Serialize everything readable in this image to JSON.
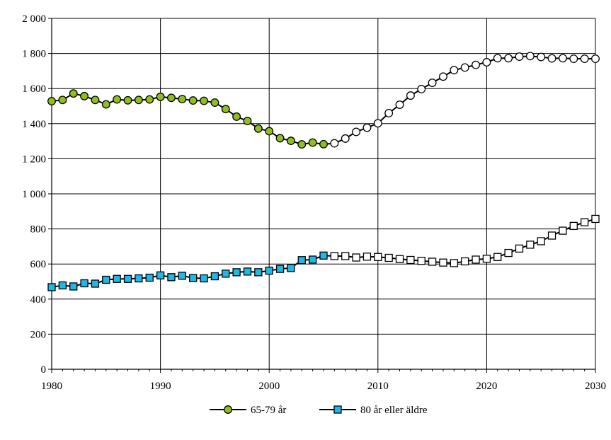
{
  "chart_data": {
    "type": "line",
    "title": "",
    "xlabel": "",
    "ylabel": "",
    "xlim": [
      1980,
      2030
    ],
    "ylim": [
      0,
      2000
    ],
    "grid": true,
    "legend_position": "bottom-center",
    "x_ticks": [
      {
        "value": 1980,
        "label": "1980"
      },
      {
        "value": 1990,
        "label": "1990"
      },
      {
        "value": 2000,
        "label": "2000"
      },
      {
        "value": 2010,
        "label": "2010"
      },
      {
        "value": 2020,
        "label": "2020"
      },
      {
        "value": 2030,
        "label": "2030"
      }
    ],
    "y_ticks": [
      {
        "value": 0,
        "label": "0"
      },
      {
        "value": 200,
        "label": "200"
      },
      {
        "value": 400,
        "label": "400"
      },
      {
        "value": 600,
        "label": "600"
      },
      {
        "value": 800,
        "label": "800"
      },
      {
        "value": 1000,
        "label": "1 000"
      },
      {
        "value": 1200,
        "label": "1 200"
      },
      {
        "value": 1400,
        "label": "1 400"
      },
      {
        "value": 1600,
        "label": "1 600"
      },
      {
        "value": 1800,
        "label": "1 800"
      },
      {
        "value": 2000,
        "label": "2 000"
      }
    ],
    "forecast_start_year": 2006,
    "series": [
      {
        "name": "65-79 år",
        "marker": "circle",
        "color": "#8fbf1e",
        "forecast_color": "#ffffff",
        "x": [
          1980,
          1981,
          1982,
          1983,
          1984,
          1985,
          1986,
          1987,
          1988,
          1989,
          1990,
          1991,
          1992,
          1993,
          1994,
          1995,
          1996,
          1997,
          1998,
          1999,
          2000,
          2001,
          2002,
          2003,
          2004,
          2005,
          2006,
          2007,
          2008,
          2009,
          2010,
          2011,
          2012,
          2013,
          2014,
          2015,
          2016,
          2017,
          2018,
          2019,
          2020,
          2021,
          2022,
          2023,
          2024,
          2025,
          2026,
          2027,
          2028,
          2029,
          2030
        ],
        "values": [
          1528,
          1535,
          1572,
          1557,
          1535,
          1510,
          1538,
          1533,
          1535,
          1538,
          1553,
          1547,
          1540,
          1532,
          1530,
          1520,
          1483,
          1440,
          1415,
          1372,
          1357,
          1317,
          1302,
          1282,
          1292,
          1283,
          1288,
          1315,
          1353,
          1377,
          1402,
          1460,
          1508,
          1560,
          1597,
          1633,
          1668,
          1705,
          1720,
          1735,
          1750,
          1773,
          1773,
          1782,
          1785,
          1780,
          1772,
          1773,
          1770,
          1770,
          1770
        ]
      },
      {
        "name": "80 år eller äldre",
        "marker": "square",
        "color": "#21b8e8",
        "forecast_color": "#ffffff",
        "x": [
          1980,
          1981,
          1982,
          1983,
          1984,
          1985,
          1986,
          1987,
          1988,
          1989,
          1990,
          1991,
          1992,
          1993,
          1994,
          1995,
          1996,
          1997,
          1998,
          1999,
          2000,
          2001,
          2002,
          2003,
          2004,
          2005,
          2006,
          2007,
          2008,
          2009,
          2010,
          2011,
          2012,
          2013,
          2014,
          2015,
          2016,
          2017,
          2018,
          2019,
          2020,
          2021,
          2022,
          2023,
          2024,
          2025,
          2026,
          2027,
          2028,
          2029,
          2030
        ],
        "values": [
          468,
          478,
          472,
          490,
          488,
          510,
          515,
          515,
          518,
          522,
          535,
          525,
          533,
          520,
          518,
          530,
          545,
          553,
          557,
          553,
          562,
          572,
          577,
          622,
          625,
          648,
          645,
          645,
          637,
          642,
          640,
          635,
          628,
          623,
          618,
          613,
          608,
          605,
          615,
          625,
          630,
          640,
          663,
          688,
          710,
          730,
          762,
          790,
          817,
          838,
          857
        ]
      }
    ]
  }
}
